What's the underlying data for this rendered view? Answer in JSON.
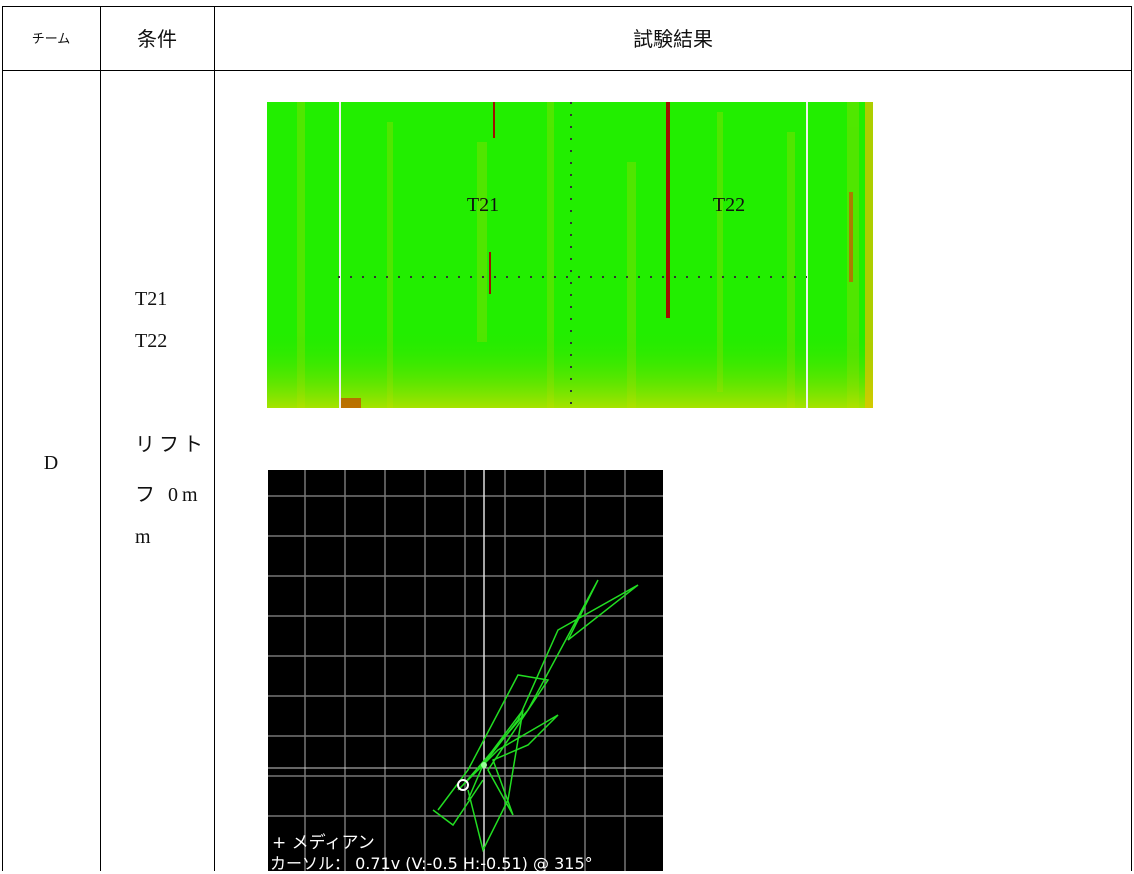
{
  "table": {
    "header": [
      "チーム",
      "条件",
      "試験結果"
    ],
    "rows": [
      {
        "team": "D",
        "conditions": [
          "T21",
          "T22",
          "リフト",
          "フ 0m",
          "m"
        ],
        "results": {
          "heatmap_labels": [
            "T21",
            "T22"
          ],
          "scope_legend": "+ メディアン",
          "scope_cursor": "カーソル： 0.71v (V:-0.5 H:-0.51) @ 315°"
        }
      }
    ]
  }
}
